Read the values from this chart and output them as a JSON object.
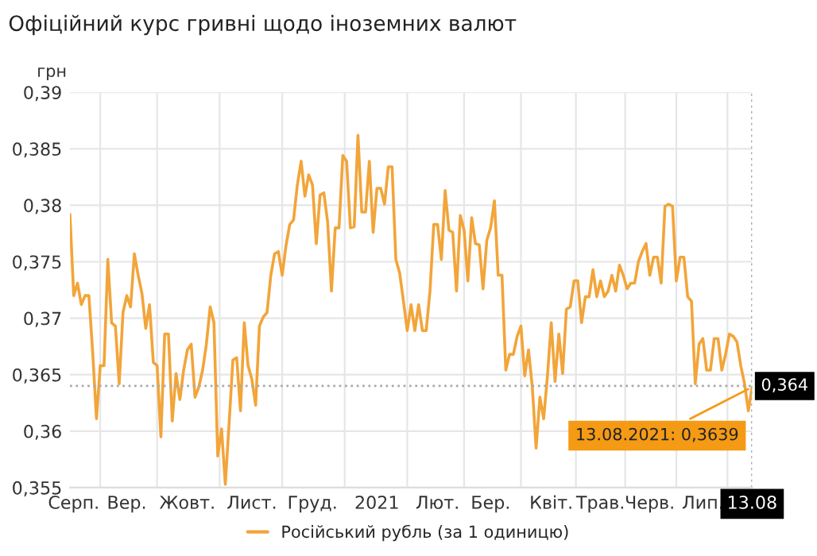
{
  "chart_data": {
    "type": "line",
    "title": "Офіційний курс гривні щодо іноземних валют",
    "ylabel": "грн",
    "categories": [
      null,
      "Серп.",
      null,
      null,
      null,
      null,
      null,
      null,
      null,
      null,
      null,
      null,
      null,
      null,
      null,
      "Вер.",
      null,
      null,
      null,
      null,
      null,
      null,
      null,
      null,
      null,
      null,
      null,
      null,
      null,
      null,
      null,
      "Жовт.",
      null,
      null,
      null,
      null,
      null,
      null,
      null,
      null,
      null,
      null,
      null,
      null,
      null,
      null,
      null,
      null,
      "Лист.",
      null,
      null,
      null,
      null,
      null,
      null,
      null,
      null,
      null,
      null,
      null,
      null,
      null,
      null,
      null,
      "Груд.",
      null,
      null,
      null,
      null,
      null,
      null,
      null,
      null,
      null,
      null,
      null,
      null,
      null,
      null,
      null,
      null,
      "2021",
      null,
      null,
      null,
      null,
      null,
      null,
      null,
      null,
      null,
      null,
      null,
      null,
      null,
      null,
      null,
      "Лют.",
      null,
      null,
      null,
      null,
      null,
      null,
      null,
      null,
      null,
      null,
      null,
      null,
      null,
      "Бер.",
      null,
      null,
      null,
      null,
      null,
      null,
      null,
      null,
      null,
      null,
      null,
      null,
      null,
      null,
      null,
      "Квіт.",
      null,
      null,
      null,
      null,
      null,
      null,
      null,
      null,
      null,
      null,
      null,
      null,
      "Трав.",
      null,
      null,
      null,
      null,
      null,
      null,
      null,
      null,
      null,
      null,
      null,
      null,
      "Черв.",
      null,
      null,
      null,
      null,
      null,
      null,
      null,
      null,
      null,
      null,
      null,
      null,
      null,
      "Лип.",
      null,
      null,
      null,
      null,
      null,
      null,
      null,
      null,
      null,
      null,
      null,
      null,
      "13.08"
    ],
    "series": [
      {
        "name": "Російський рубль (за 1 одиницю)",
        "color": "#f2a53a",
        "values": [
          0.3792,
          0.372,
          0.3731,
          0.3712,
          0.372,
          0.372,
          0.367,
          0.3611,
          0.3658,
          0.3658,
          0.3752,
          0.3696,
          0.3693,
          0.3642,
          0.3705,
          0.372,
          0.371,
          0.3757,
          0.3738,
          0.3722,
          0.3691,
          0.3712,
          0.3661,
          0.3658,
          0.3595,
          0.3686,
          0.3686,
          0.3609,
          0.3651,
          0.3628,
          0.3654,
          0.3672,
          0.3677,
          0.363,
          0.3639,
          0.3654,
          0.3677,
          0.371,
          0.3696,
          0.3578,
          0.3602,
          0.3553,
          0.3607,
          0.3663,
          0.3665,
          0.3618,
          0.3696,
          0.3658,
          0.3646,
          0.3623,
          0.3693,
          0.3701,
          0.3705,
          0.3738,
          0.3757,
          0.3759,
          0.3738,
          0.3764,
          0.3783,
          0.3787,
          0.3818,
          0.3839,
          0.3808,
          0.3827,
          0.3818,
          0.3766,
          0.3809,
          0.3811,
          0.3785,
          0.3724,
          0.378,
          0.378,
          0.3844,
          0.3839,
          0.378,
          0.3781,
          0.3862,
          0.3794,
          0.3794,
          0.3839,
          0.3776,
          0.3815,
          0.3815,
          0.3801,
          0.3834,
          0.3834,
          0.3752,
          0.374,
          0.3715,
          0.3689,
          0.3712,
          0.3689,
          0.3712,
          0.3689,
          0.3689,
          0.3724,
          0.3783,
          0.3783,
          0.3752,
          0.3813,
          0.3778,
          0.3776,
          0.3724,
          0.3791,
          0.3778,
          0.3733,
          0.3789,
          0.3766,
          0.3765,
          0.3726,
          0.3769,
          0.378,
          0.3804,
          0.3738,
          0.3738,
          0.3654,
          0.3668,
          0.3668,
          0.3684,
          0.3693,
          0.3649,
          0.3672,
          0.3639,
          0.3585,
          0.363,
          0.3611,
          0.3649,
          0.3696,
          0.3644,
          0.3686,
          0.3651,
          0.3708,
          0.371,
          0.3733,
          0.3733,
          0.3696,
          0.3719,
          0.3719,
          0.3743,
          0.3719,
          0.3733,
          0.3719,
          0.3724,
          0.3738,
          0.3724,
          0.3747,
          0.3738,
          0.3726,
          0.3731,
          0.3731,
          0.375,
          0.3759,
          0.3766,
          0.3738,
          0.3754,
          0.3754,
          0.3731,
          0.3799,
          0.3801,
          0.3799,
          0.3733,
          0.3754,
          0.3754,
          0.3719,
          0.3715,
          0.3642,
          0.3677,
          0.3682,
          0.3654,
          0.3654,
          0.3682,
          0.3682,
          0.3654,
          0.3668,
          0.3686,
          0.3684,
          0.3679,
          0.3658,
          0.3642,
          0.3618,
          0.3639
        ]
      }
    ],
    "ylim": [
      0.355,
      0.39
    ],
    "yticks": [
      {
        "value": 0.355,
        "label": "0,355"
      },
      {
        "value": 0.36,
        "label": "0,36"
      },
      {
        "value": 0.365,
        "label": "0,365"
      },
      {
        "value": 0.37,
        "label": "0,37"
      },
      {
        "value": 0.375,
        "label": "0,375"
      },
      {
        "value": 0.38,
        "label": "0,38"
      },
      {
        "value": 0.385,
        "label": "0,385"
      },
      {
        "value": 0.39,
        "label": "0,39"
      }
    ],
    "ref_lines": [
      {
        "axis": "y",
        "value": 0.364,
        "label": "0,364",
        "color": "#aaaaaa",
        "line_style": "dotted"
      },
      {
        "axis": "x",
        "value": "13.08",
        "color": "#aaaaaa",
        "line_style": "dotted"
      }
    ],
    "annotations": [
      {
        "text": "13.08.2021: 0,3639",
        "x": "13.08",
        "y": 0.3639
      }
    ],
    "grid": true,
    "legend": "bottom",
    "marker": "none",
    "line_style": "solid"
  }
}
